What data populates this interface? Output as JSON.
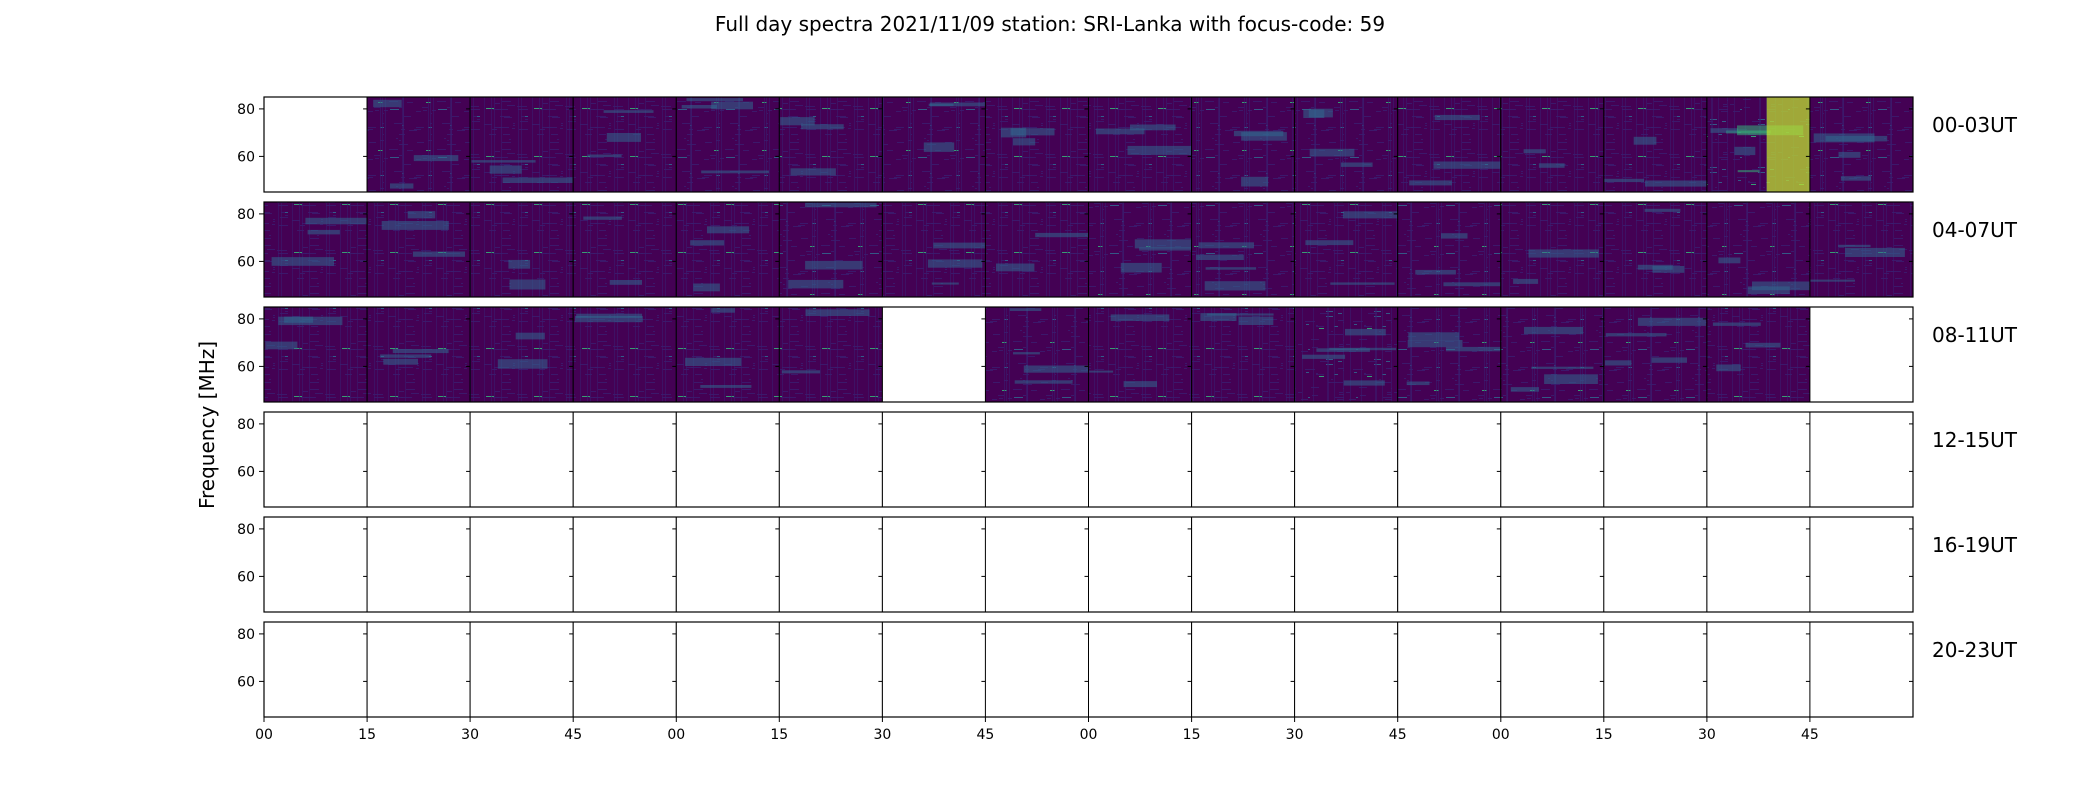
{
  "figure": {
    "title": "Full day spectra 2021/11/09 station: SRI-Lanka with focus-code: 59"
  },
  "chart_data": {
    "type": "heatmap",
    "title": "Full day spectra 2021/11/09 station: SRI-Lanka with focus-code: 59",
    "ylabel": "Frequency [MHz]",
    "xlabel": "",
    "y_ticks": [
      "80",
      "60"
    ],
    "ylim": [
      45,
      85
    ],
    "x_tick_labels": [
      "00",
      "15",
      "30",
      "45",
      "00",
      "15",
      "30",
      "45",
      "00",
      "15",
      "30",
      "45",
      "00",
      "15",
      "30",
      "45"
    ],
    "colormap": "viridis",
    "colors": {
      "background": "#440154",
      "low": "#3b1c6e",
      "mid": "#31688e",
      "high": "#35b779",
      "peak": "#bfe030"
    },
    "rows": [
      {
        "label": "00-03UT",
        "panels_available": [
          false,
          true,
          true,
          true,
          true,
          true,
          true,
          true,
          true,
          true,
          true,
          true,
          true,
          true,
          true,
          true
        ],
        "panel_intensity": [
          0,
          0.3,
          0.25,
          0.25,
          0.35,
          0.25,
          0.3,
          0.25,
          0.25,
          0.3,
          0.35,
          0.25,
          0.2,
          0.25,
          0.5,
          0.35
        ]
      },
      {
        "label": "04-07UT",
        "panels_available": [
          true,
          true,
          true,
          true,
          true,
          true,
          true,
          true,
          true,
          true,
          true,
          true,
          true,
          true,
          true,
          true
        ],
        "panel_intensity": [
          0.25,
          0.25,
          0.2,
          0.2,
          0.25,
          0.3,
          0.25,
          0.2,
          0.3,
          0.35,
          0.25,
          0.3,
          0.2,
          0.25,
          0.3,
          0.25
        ]
      },
      {
        "label": "08-11UT",
        "panels_available": [
          true,
          true,
          true,
          true,
          true,
          true,
          false,
          true,
          true,
          true,
          true,
          true,
          true,
          true,
          true,
          false
        ],
        "panel_intensity": [
          0.25,
          0.25,
          0.2,
          0.2,
          0.25,
          0.2,
          0,
          0.35,
          0.25,
          0.25,
          0.45,
          0.4,
          0.4,
          0.4,
          0.25,
          0
        ]
      },
      {
        "label": "12-15UT",
        "panels_available": [
          false,
          false,
          false,
          false,
          false,
          false,
          false,
          false,
          false,
          false,
          false,
          false,
          false,
          false,
          false,
          false
        ],
        "panel_intensity": [
          0,
          0,
          0,
          0,
          0,
          0,
          0,
          0,
          0,
          0,
          0,
          0,
          0,
          0,
          0,
          0
        ]
      },
      {
        "label": "16-19UT",
        "panels_available": [
          false,
          false,
          false,
          false,
          false,
          false,
          false,
          false,
          false,
          false,
          false,
          false,
          false,
          false,
          false,
          false
        ],
        "panel_intensity": [
          0,
          0,
          0,
          0,
          0,
          0,
          0,
          0,
          0,
          0,
          0,
          0,
          0,
          0,
          0,
          0
        ]
      },
      {
        "label": "20-23UT",
        "panels_available": [
          false,
          false,
          false,
          false,
          false,
          false,
          false,
          false,
          false,
          false,
          false,
          false,
          false,
          false,
          false,
          false
        ],
        "panel_intensity": [
          0,
          0,
          0,
          0,
          0,
          0,
          0,
          0,
          0,
          0,
          0,
          0,
          0,
          0,
          0,
          0
        ]
      }
    ]
  }
}
